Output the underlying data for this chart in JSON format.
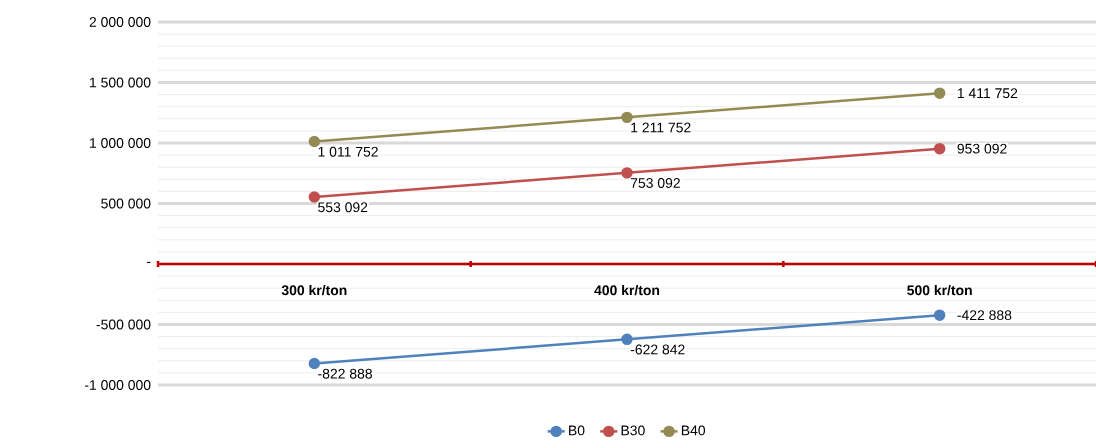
{
  "chart_data": {
    "type": "line",
    "categories": [
      "300 kr/ton",
      "400 kr/ton",
      "500 kr/ton"
    ],
    "series": [
      {
        "name": "B0",
        "color": "#4f81bd",
        "values": [
          -822888,
          -622842,
          -422888
        ],
        "value_labels": [
          "-822 888",
          "-622 842",
          "-422 888"
        ]
      },
      {
        "name": "B30",
        "color": "#c0504d",
        "values": [
          553092,
          753092,
          953092
        ],
        "value_labels": [
          "553 092",
          "753 092",
          "953 092"
        ]
      },
      {
        "name": "B40",
        "color": "#948a54",
        "values": [
          1011752,
          1211752,
          1411752
        ],
        "value_labels": [
          "1 011 752",
          "1 211 752",
          "1 411 752"
        ]
      }
    ],
    "ylim": [
      -1000000,
      2000000
    ],
    "yticks": [
      {
        "value": -1000000,
        "label": "-1 000 000"
      },
      {
        "value": -500000,
        "label": "-500 000"
      },
      {
        "value": 0,
        "label": "-"
      },
      {
        "value": 500000,
        "label": "500 000"
      },
      {
        "value": 1000000,
        "label": "1 000 000"
      },
      {
        "value": 1500000,
        "label": "1 500 000"
      },
      {
        "value": 2000000,
        "label": "2 000 000"
      }
    ],
    "grid": "y",
    "legend": "bottom",
    "marker": "circle",
    "line_style": "solid"
  }
}
